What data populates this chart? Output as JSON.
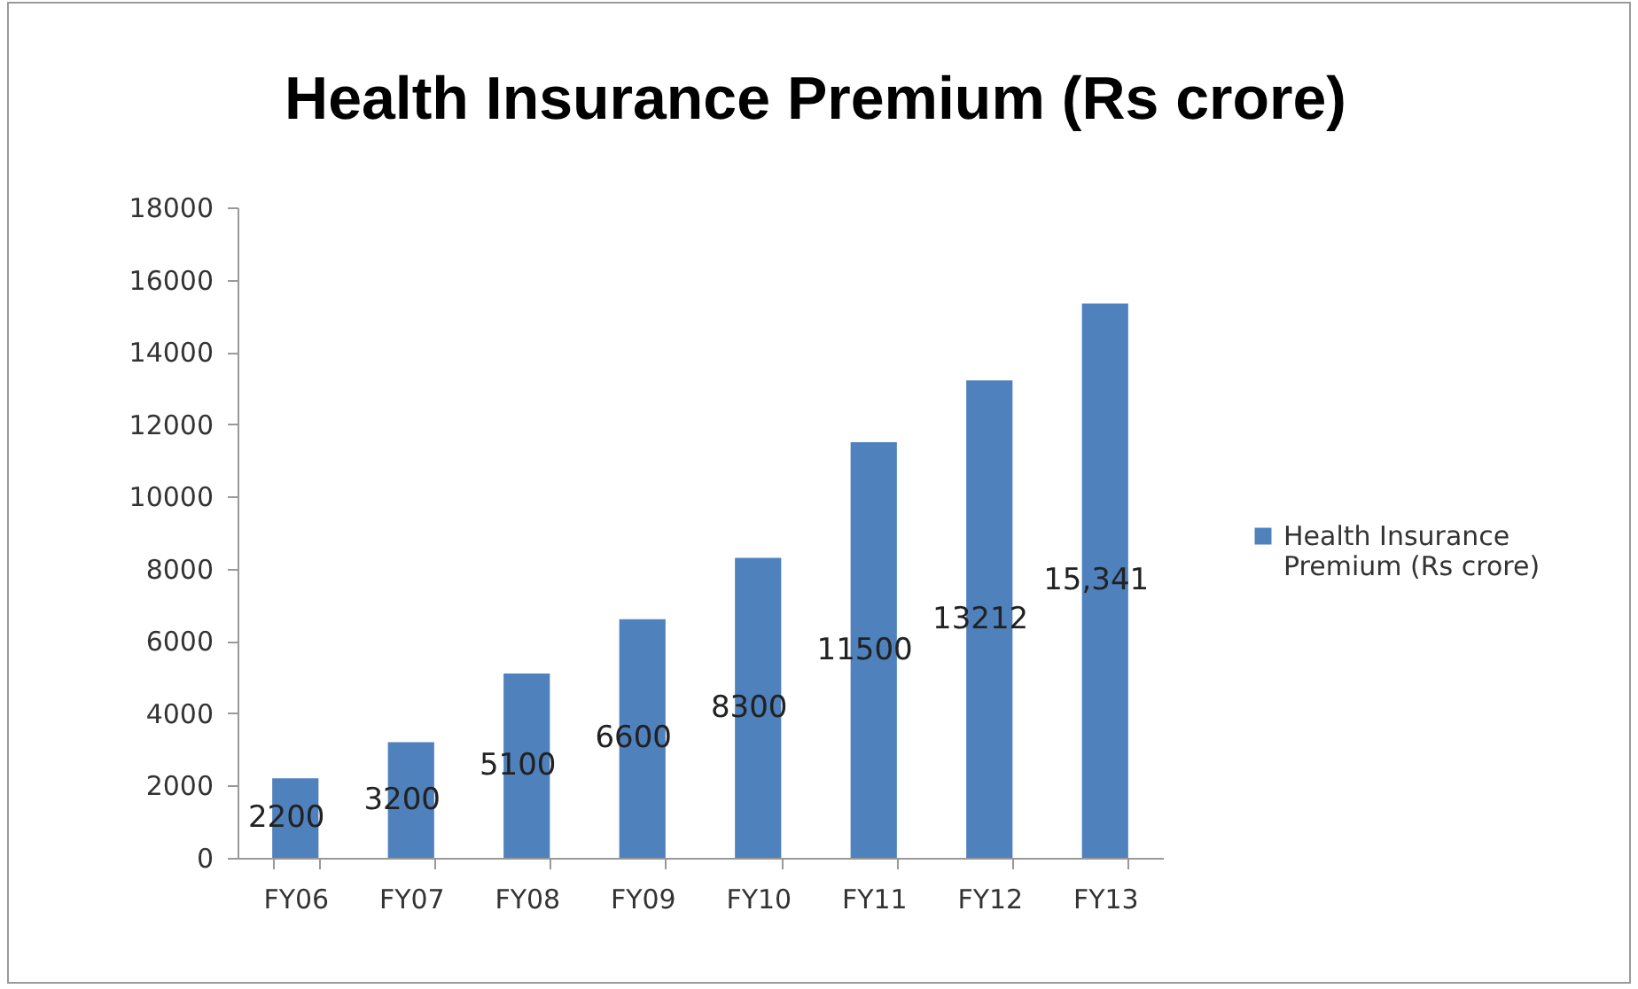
{
  "chart_data": {
    "type": "bar",
    "title": "Health Insurance Premium (Rs crore)",
    "categories": [
      "FY06",
      "FY07",
      "FY08",
      "FY09",
      "FY10",
      "FY11",
      "FY12",
      "FY13"
    ],
    "series": [
      {
        "name": "Health Insurance Premium (Rs crore)",
        "color": "#4f81bd",
        "values": [
          2200,
          3200,
          5100,
          6600,
          8300,
          11500,
          13212,
          15341
        ],
        "value_labels": [
          "2200",
          "3200",
          "5100",
          "6600",
          "8300",
          "11500",
          "13212",
          "15,341"
        ]
      }
    ],
    "ylim": [
      0,
      18000
    ],
    "yticks": [
      0,
      2000,
      4000,
      6000,
      8000,
      10000,
      12000,
      14000,
      16000,
      18000
    ],
    "grid": false,
    "legend": "right"
  }
}
